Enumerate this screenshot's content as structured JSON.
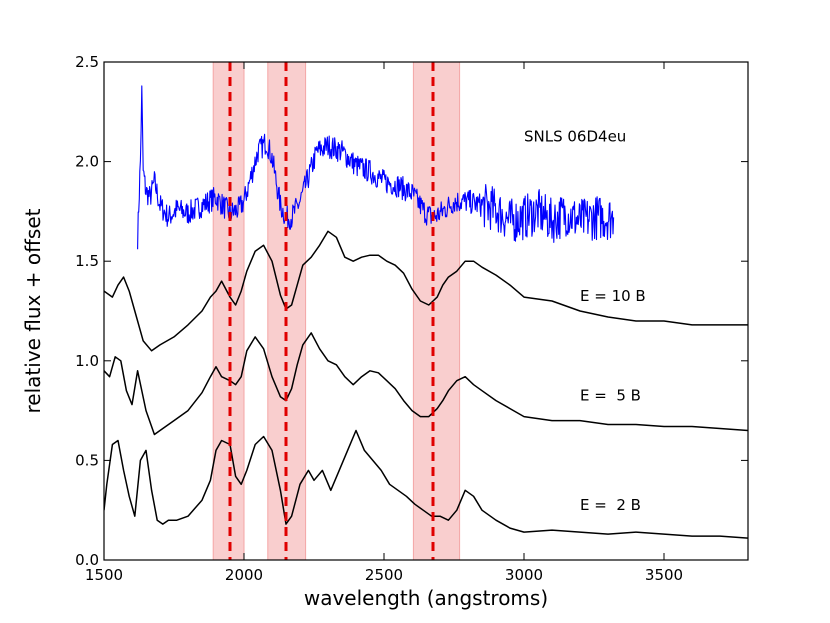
{
  "chart_data": {
    "type": "line",
    "title": "",
    "xlabel": "wavelength (angstroms)",
    "ylabel": "relative flux + offset",
    "xlim": [
      1500,
      3800
    ],
    "ylim": [
      0.0,
      2.5
    ],
    "xticks": [
      1500,
      2000,
      2500,
      3000,
      3500
    ],
    "xtick_labels": [
      "1500",
      "2000",
      "2500",
      "3000",
      "3500"
    ],
    "yticks": [
      0.0,
      0.5,
      1.0,
      1.5,
      2.0,
      2.5
    ],
    "ytick_labels": [
      "0.0",
      "0.5",
      "1.0",
      "1.5",
      "2.0",
      "2.5"
    ],
    "grid": false,
    "bands": [
      {
        "x0": 1890,
        "x1": 2000,
        "color": "#f4a6a6"
      },
      {
        "x0": 2085,
        "x1": 2220,
        "color": "#f4a6a6"
      },
      {
        "x0": 2605,
        "x1": 2770,
        "color": "#f4a6a6"
      }
    ],
    "vlines": [
      {
        "x": 1950,
        "color": "#e00000",
        "style": "dashed"
      },
      {
        "x": 2150,
        "color": "#e00000",
        "style": "dashed"
      },
      {
        "x": 2675,
        "color": "#e00000",
        "style": "dashed"
      }
    ],
    "annotations": [
      {
        "text": "SNLS 06D4eu",
        "x": 3000,
        "y": 2.1,
        "color": "#0000ff"
      },
      {
        "text": "E = 10 B",
        "x": 3200,
        "y": 1.3,
        "color": "#000000"
      },
      {
        "text": "E =  5 B",
        "x": 3200,
        "y": 0.8,
        "color": "#000000"
      },
      {
        "text": "E =  2 B",
        "x": 3200,
        "y": 0.25,
        "color": "#000000"
      }
    ],
    "series": [
      {
        "color": "#0000ff",
        "noise_amplitude": 0.06,
        "x": [
          1620,
          1630,
          1635,
          1640,
          1650,
          1665,
          1680,
          1700,
          1730,
          1760,
          1800,
          1850,
          1900,
          1950,
          1980,
          2000,
          2050,
          2080,
          2100,
          2130,
          2150,
          2170,
          2200,
          2230,
          2260,
          2300,
          2350,
          2400,
          2450,
          2500,
          2550,
          2600,
          2650,
          2675,
          2700,
          2750,
          2800,
          2850,
          2900,
          2950,
          3000,
          3050,
          3100,
          3150,
          3200,
          3250,
          3320
        ],
        "y": [
          1.62,
          2.0,
          2.35,
          1.95,
          1.85,
          1.82,
          1.9,
          1.78,
          1.72,
          1.76,
          1.74,
          1.78,
          1.82,
          1.74,
          1.76,
          1.8,
          2.05,
          2.1,
          2.02,
          1.78,
          1.72,
          1.72,
          1.8,
          1.92,
          2.05,
          2.08,
          2.05,
          1.98,
          1.95,
          1.9,
          1.88,
          1.84,
          1.74,
          1.72,
          1.74,
          1.8,
          1.8,
          1.78,
          1.76,
          1.7,
          1.72,
          1.75,
          1.7,
          1.74,
          1.7,
          1.72,
          1.72
        ]
      },
      {
        "color": "#000000",
        "x": [
          1500,
          1530,
          1550,
          1570,
          1590,
          1610,
          1640,
          1670,
          1700,
          1750,
          1800,
          1850,
          1880,
          1900,
          1920,
          1950,
          1970,
          1990,
          2010,
          2040,
          2070,
          2100,
          2130,
          2150,
          2170,
          2190,
          2210,
          2240,
          2270,
          2300,
          2330,
          2360,
          2390,
          2420,
          2450,
          2480,
          2510,
          2540,
          2570,
          2600,
          2630,
          2660,
          2690,
          2710,
          2730,
          2760,
          2790,
          2820,
          2850,
          2900,
          2950,
          3000,
          3100,
          3200,
          3300,
          3400,
          3500,
          3600,
          3700,
          3800
        ],
        "y": [
          1.35,
          1.32,
          1.38,
          1.42,
          1.35,
          1.25,
          1.1,
          1.05,
          1.08,
          1.12,
          1.18,
          1.25,
          1.32,
          1.35,
          1.4,
          1.32,
          1.28,
          1.35,
          1.45,
          1.55,
          1.58,
          1.5,
          1.33,
          1.26,
          1.28,
          1.38,
          1.48,
          1.52,
          1.58,
          1.65,
          1.62,
          1.52,
          1.5,
          1.52,
          1.53,
          1.53,
          1.5,
          1.48,
          1.44,
          1.36,
          1.3,
          1.28,
          1.32,
          1.38,
          1.42,
          1.45,
          1.5,
          1.5,
          1.47,
          1.43,
          1.38,
          1.32,
          1.3,
          1.25,
          1.22,
          1.2,
          1.2,
          1.18,
          1.18,
          1.18
        ]
      },
      {
        "color": "#000000",
        "x": [
          1500,
          1520,
          1540,
          1560,
          1580,
          1600,
          1620,
          1650,
          1680,
          1700,
          1750,
          1800,
          1850,
          1880,
          1900,
          1920,
          1950,
          1970,
          1990,
          2010,
          2040,
          2070,
          2100,
          2130,
          2150,
          2170,
          2190,
          2210,
          2240,
          2270,
          2300,
          2330,
          2360,
          2390,
          2420,
          2450,
          2480,
          2510,
          2540,
          2570,
          2600,
          2630,
          2660,
          2690,
          2710,
          2730,
          2760,
          2790,
          2820,
          2850,
          2900,
          2950,
          3000,
          3100,
          3200,
          3300,
          3400,
          3500,
          3600,
          3700,
          3800
        ],
        "y": [
          0.95,
          0.92,
          1.02,
          1.0,
          0.85,
          0.78,
          0.95,
          0.75,
          0.63,
          0.65,
          0.7,
          0.75,
          0.84,
          0.92,
          0.97,
          0.92,
          0.9,
          0.88,
          0.92,
          1.05,
          1.12,
          1.06,
          0.92,
          0.82,
          0.8,
          0.86,
          0.98,
          1.08,
          1.14,
          1.06,
          1.0,
          0.98,
          0.92,
          0.88,
          0.92,
          0.95,
          0.94,
          0.9,
          0.86,
          0.8,
          0.75,
          0.72,
          0.72,
          0.76,
          0.8,
          0.85,
          0.9,
          0.92,
          0.88,
          0.85,
          0.8,
          0.76,
          0.72,
          0.7,
          0.7,
          0.68,
          0.68,
          0.67,
          0.67,
          0.66,
          0.65
        ]
      },
      {
        "color": "#000000",
        "x": [
          1500,
          1510,
          1530,
          1550,
          1570,
          1590,
          1610,
          1630,
          1650,
          1670,
          1690,
          1710,
          1730,
          1760,
          1800,
          1850,
          1880,
          1900,
          1920,
          1950,
          1970,
          1990,
          2010,
          2040,
          2070,
          2100,
          2130,
          2150,
          2170,
          2200,
          2230,
          2250,
          2280,
          2310,
          2340,
          2370,
          2400,
          2430,
          2460,
          2490,
          2520,
          2550,
          2580,
          2610,
          2640,
          2670,
          2700,
          2730,
          2760,
          2790,
          2820,
          2850,
          2900,
          2950,
          3000,
          3100,
          3200,
          3300,
          3400,
          3500,
          3600,
          3700,
          3800
        ],
        "y": [
          0.25,
          0.38,
          0.58,
          0.6,
          0.45,
          0.32,
          0.22,
          0.5,
          0.55,
          0.35,
          0.2,
          0.18,
          0.2,
          0.2,
          0.22,
          0.3,
          0.4,
          0.55,
          0.6,
          0.58,
          0.42,
          0.38,
          0.45,
          0.58,
          0.62,
          0.55,
          0.35,
          0.18,
          0.22,
          0.38,
          0.45,
          0.4,
          0.45,
          0.35,
          0.45,
          0.55,
          0.65,
          0.55,
          0.5,
          0.45,
          0.38,
          0.35,
          0.32,
          0.28,
          0.25,
          0.22,
          0.22,
          0.2,
          0.25,
          0.35,
          0.32,
          0.25,
          0.2,
          0.16,
          0.14,
          0.15,
          0.14,
          0.13,
          0.14,
          0.13,
          0.12,
          0.12,
          0.11
        ]
      }
    ]
  }
}
